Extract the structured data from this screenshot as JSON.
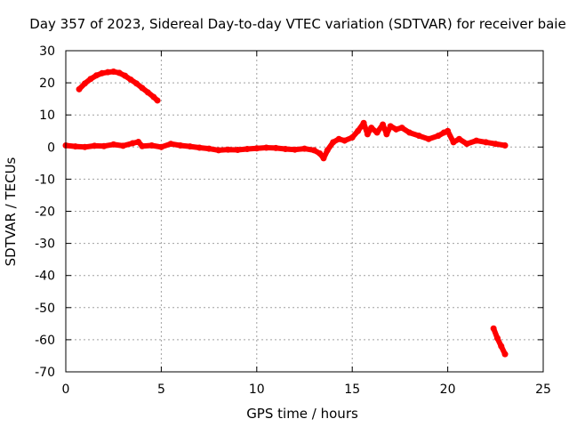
{
  "chart_data": {
    "type": "scatter",
    "title": "Day 357 of 2023, Sidereal Day-to-day VTEC variation (SDTVAR) for receiver baie",
    "xlabel": "GPS time / hours",
    "ylabel": "SDTVAR / TECUs",
    "xlim": [
      0,
      25
    ],
    "ylim": [
      -70,
      30
    ],
    "xticks": [
      0,
      5,
      10,
      15,
      20,
      25
    ],
    "yticks": [
      -70,
      -60,
      -50,
      -40,
      -30,
      -20,
      -10,
      0,
      10,
      20,
      30
    ],
    "grid": true,
    "series_color": "#ff0000",
    "series": [
      {
        "name": "upper-arc",
        "x": [
          0.7,
          1.0,
          1.3,
          1.6,
          1.9,
          2.2,
          2.5,
          2.8,
          3.1,
          3.4,
          3.7,
          4.0,
          4.3,
          4.6,
          4.8
        ],
        "y": [
          18,
          19.8,
          21.2,
          22.3,
          23.0,
          23.3,
          23.5,
          23.1,
          22.2,
          21.0,
          19.8,
          18.4,
          17.0,
          15.6,
          14.5
        ]
      },
      {
        "name": "main-trace",
        "x": [
          0.0,
          0.5,
          1.0,
          1.5,
          2.0,
          2.5,
          3.0,
          3.5,
          3.8,
          4.0,
          4.5,
          5.0,
          5.5,
          6.0,
          6.5,
          7.0,
          7.5,
          8.0,
          8.5,
          9.0,
          9.5,
          10.0,
          10.5,
          11.0,
          11.5,
          12.0,
          12.5,
          13.0,
          13.3,
          13.5,
          13.7,
          14.0,
          14.3,
          14.6,
          15.0,
          15.3,
          15.6,
          15.8,
          16.0,
          16.3,
          16.6,
          16.8,
          17.0,
          17.3,
          17.6,
          18.0,
          18.5,
          19.0,
          19.5,
          19.8,
          20.0,
          20.3,
          20.6,
          21.0,
          21.5,
          22.0,
          22.5,
          23.0
        ],
        "y": [
          0.5,
          0.2,
          0.0,
          0.4,
          0.3,
          0.8,
          0.4,
          1.2,
          1.6,
          0.3,
          0.5,
          0.0,
          1.0,
          0.5,
          0.2,
          -0.2,
          -0.5,
          -1.0,
          -0.8,
          -0.9,
          -0.6,
          -0.4,
          -0.2,
          -0.3,
          -0.6,
          -0.8,
          -0.5,
          -1.0,
          -2.0,
          -3.5,
          -1.0,
          1.5,
          2.5,
          2.0,
          3.0,
          5.0,
          7.5,
          4.0,
          6.0,
          4.5,
          7.0,
          4.0,
          6.5,
          5.5,
          6.0,
          4.5,
          3.5,
          2.5,
          3.5,
          4.5,
          5.0,
          1.5,
          2.5,
          1.0,
          2.0,
          1.5,
          1.0,
          0.5
        ]
      },
      {
        "name": "lower-drop",
        "x": [
          22.4,
          22.6,
          22.8,
          23.0
        ],
        "y": [
          -56.5,
          -59.5,
          -62.0,
          -64.5
        ]
      }
    ]
  }
}
